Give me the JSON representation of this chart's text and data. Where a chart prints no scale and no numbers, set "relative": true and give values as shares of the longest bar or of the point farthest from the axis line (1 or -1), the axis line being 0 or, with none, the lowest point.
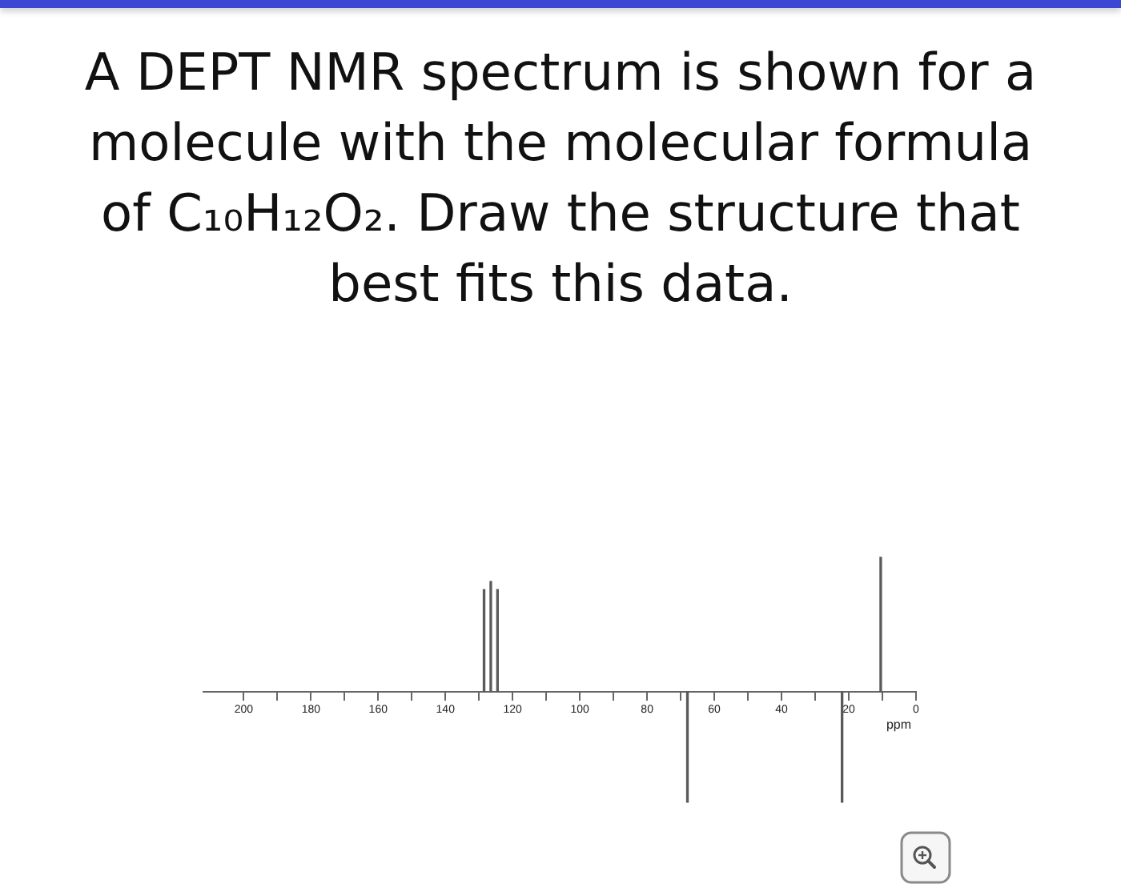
{
  "chart_data": {
    "type": "bar",
    "title": "A DEPT NMR spectrum is shown for a molecule with the molecular formula of C₁₀H₁₂O₂. Draw the structure that best fits this data.",
    "xlabel": "ppm",
    "x": [
      128.5,
      126.5,
      124.5,
      68,
      22,
      10.5
    ],
    "values": [
      0.76,
      0.82,
      0.76,
      -0.82,
      -0.82,
      1
    ],
    "color": "#5a5a5a",
    "relative": true,
    "xlim": [
      212,
      0
    ],
    "xticks": [
      200,
      {
        "value": 190,
        "label": null
      },
      180,
      {
        "value": 170,
        "label": null
      },
      160,
      {
        "value": 150,
        "label": null
      },
      140,
      {
        "value": 130,
        "label": null
      },
      120,
      {
        "value": 110,
        "label": null
      },
      100,
      {
        "value": 90,
        "label": null
      },
      80,
      {
        "value": 70,
        "label": null
      },
      60,
      {
        "value": 50,
        "label": null
      },
      40,
      {
        "value": 30,
        "label": null
      },
      20,
      {
        "value": 10,
        "label": null
      },
      0
    ]
  }
}
